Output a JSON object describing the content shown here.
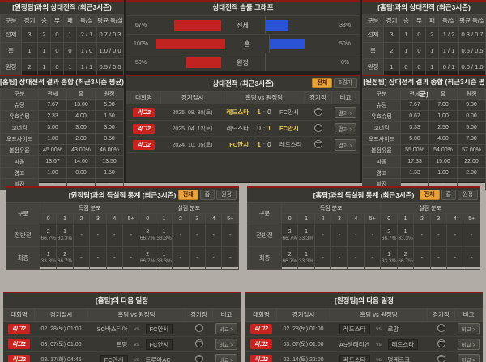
{
  "panels": {
    "h2h_vs_away": {
      "title": "[원정팀]과의 상대전적 (최근3시즌)",
      "headers": [
        "구분",
        "경기",
        "승",
        "무",
        "패",
        "득/실",
        "평균 득/실"
      ],
      "rows": [
        [
          "전체",
          "3",
          "2",
          "0",
          "1",
          "2 / 1",
          "0.7 / 0.3"
        ],
        [
          "홈",
          "1",
          "1",
          "0",
          "0",
          "1 / 0",
          "1.0 / 0.0"
        ],
        [
          "원정",
          "2",
          "1",
          "0",
          "1",
          "1 / 1",
          "0.5 / 0.5"
        ]
      ]
    },
    "winrate": {
      "title": "상대전적 승률 그래프",
      "left_color": "#c02320",
      "right_color": "#2b53d6",
      "rows": [
        {
          "label": "전체",
          "left_pct": 67,
          "left_text": "67%",
          "right_pct": 33,
          "right_text": "33%"
        },
        {
          "label": "홈",
          "left_pct": 100,
          "left_text": "100%",
          "right_pct": 50,
          "right_text": "50%"
        },
        {
          "label": "원정",
          "left_pct": 50,
          "left_text": "50%",
          "right_pct": 0,
          "right_text": "0%"
        }
      ]
    },
    "h2h_vs_home": {
      "title": "[홈팀]과의 상대전적 (최근3시즌)",
      "headers": [
        "구분",
        "경기",
        "승",
        "무",
        "패",
        "득/실",
        "평균 득/실"
      ],
      "rows": [
        [
          "전체",
          "3",
          "1",
          "0",
          "2",
          "1 / 2",
          "0.3 / 0.7"
        ],
        [
          "홈",
          "2",
          "1",
          "0",
          "1",
          "1 / 1",
          "0.5 / 0.5"
        ],
        [
          "원정",
          "1",
          "0",
          "0",
          "1",
          "0 / 1",
          "0.0 / 1.0"
        ]
      ]
    },
    "home_totals": {
      "title": "[홈팀] 상대전적 결과 종합 (최근3시즌 평균)",
      "headers": [
        "구분",
        "전체",
        "홈",
        "원정"
      ],
      "rows": [
        [
          "슈팅",
          "7.67",
          "13.00",
          "5.00"
        ],
        [
          "유효슈팅",
          "2.33",
          "4.00",
          "1.50"
        ],
        [
          "코너킥",
          "3.00",
          "3.00",
          "3.00"
        ],
        [
          "오프사이드",
          "1.00",
          "2.00",
          "0.50"
        ],
        [
          "볼점유율",
          "45.00%",
          "43.00%",
          "46.00%"
        ],
        [
          "파울",
          "13.67",
          "14.00",
          "13.50"
        ],
        [
          "경고",
          "1.00",
          "0.00",
          "1.50"
        ],
        [
          "퇴장",
          "-",
          "-",
          "-"
        ]
      ]
    },
    "away_totals": {
      "title": "[원정팀] 상대전적 결과 종합 (최근3시즌 평균)",
      "headers": [
        "구분",
        "전체",
        "홈",
        "원정"
      ],
      "rows": [
        [
          "슈팅",
          "7.67",
          "7.00",
          "9.00"
        ],
        [
          "유효슈팅",
          "0.67",
          "1.00",
          "0.00"
        ],
        [
          "코너킥",
          "3.33",
          "2.50",
          "5.00"
        ],
        [
          "오프사이드",
          "5.00",
          "4.00",
          "7.00"
        ],
        [
          "볼점유율",
          "55.00%",
          "54.00%",
          "57.00%"
        ],
        [
          "파울",
          "17.33",
          "15.00",
          "22.00"
        ],
        [
          "경고",
          "1.33",
          "1.00",
          "2.00"
        ],
        [
          "퇴장",
          "-",
          "-",
          "-"
        ]
      ]
    },
    "h2h_matches": {
      "title": "상대전적 (최근3시즌)",
      "filter_buttons": [
        {
          "label": "전체",
          "active": true
        },
        {
          "label": "5경기",
          "active": false
        }
      ],
      "headers": [
        "대회명",
        "경기일시",
        "홈팀 vs 원정팀",
        "경기장",
        "비고"
      ],
      "score_separator": "-",
      "rows": [
        {
          "league": "리그2",
          "date": "2025. 08. 30(토)",
          "home": "레드스타",
          "away": "FC안시",
          "home_score": "1",
          "away_score": "0",
          "winner": "home",
          "action": "결과 >"
        },
        {
          "league": "리그2",
          "date": "2025. 04. 12(토)",
          "home": "레드스타",
          "away": "FC안시",
          "home_score": "0",
          "away_score": "1",
          "winner": "away",
          "action": "결과 >"
        },
        {
          "league": "리그2",
          "date": "2024. 10. 05(토)",
          "home": "FC안시",
          "away": "레드스타",
          "home_score": "1",
          "away_score": "0",
          "winner": "home",
          "action": "결과 >"
        }
      ]
    },
    "goals_vs_away": {
      "title": "[원정팀]과의 득실점 통계 (최근3시즌)",
      "filter_buttons": [
        {
          "label": "전체",
          "active": true
        },
        {
          "label": "홈",
          "active": false
        },
        {
          "label": "원정",
          "active": false
        }
      ],
      "corner_label": "구분",
      "groups": [
        "득점 분포",
        "실점 분포"
      ],
      "bins": [
        "0",
        "1",
        "2",
        "3",
        "4",
        "5+"
      ],
      "rows": [
        {
          "label": "전반전",
          "scored": [
            [
              "2",
              "66.7%"
            ],
            [
              "1",
              "33.3%"
            ],
            "-",
            "-",
            "-",
            "-"
          ],
          "conceded": [
            [
              "2",
              "66.7%"
            ],
            [
              "1",
              "33.3%"
            ],
            "-",
            "-",
            "-",
            "-"
          ]
        },
        {
          "label": "최종",
          "scored": [
            [
              "1",
              "33.3%"
            ],
            [
              "2",
              "66.7%"
            ],
            "-",
            "-",
            "-",
            "-"
          ],
          "conceded": [
            [
              "2",
              "66.7%"
            ],
            [
              "1",
              "33.3%"
            ],
            "-",
            "-",
            "-",
            "-"
          ]
        }
      ]
    },
    "goals_vs_home": {
      "title": "[홈팀]과의 득실점 통계 (최근3시즌)",
      "filter_buttons": [
        {
          "label": "전체",
          "active": true
        },
        {
          "label": "홈",
          "active": false
        },
        {
          "label": "원정",
          "active": false
        }
      ],
      "corner_label": "구분",
      "groups": [
        "득점 분포",
        "실점 분포"
      ],
      "bins": [
        "0",
        "1",
        "2",
        "3",
        "4",
        "5+"
      ],
      "rows": [
        {
          "label": "전반전",
          "scored": [
            [
              "2",
              "66.7%"
            ],
            [
              "1",
              "33.3%"
            ],
            "-",
            "-",
            "-",
            "-"
          ],
          "conceded": [
            [
              "2",
              "66.7%"
            ],
            [
              "1",
              "33.3%"
            ],
            "-",
            "-",
            "-",
            "-"
          ]
        },
        {
          "label": "최종",
          "scored": [
            [
              "2",
              "66.7%"
            ],
            [
              "1",
              "33.3%"
            ],
            "-",
            "-",
            "-",
            "-"
          ],
          "conceded": [
            [
              "1",
              "33.3%"
            ],
            [
              "2",
              "66.7%"
            ],
            "-",
            "-",
            "-",
            "-"
          ]
        }
      ]
    },
    "schedule_home": {
      "title": "[홈팀]의 다음 일정",
      "headers": [
        "대회명",
        "경기일시",
        "홈팀 vs 원정팀",
        "경기장",
        "비고"
      ],
      "vs_label": "vs",
      "rows": [
        {
          "league": "리그2",
          "date": "02. 28(토) 01:00",
          "home": "SC바스티아",
          "away": "FC안시",
          "highlight": "away",
          "action": "비교 >"
        },
        {
          "league": "리그2",
          "date": "03. 07(토) 01:00",
          "home": "르망",
          "away": "FC안시",
          "highlight": "away",
          "action": "비교 >"
        },
        {
          "league": "리그2",
          "date": "03. 17(화) 04:45",
          "home": "FC안시",
          "away": "트루아AC",
          "highlight": "home",
          "action": "비교 >"
        }
      ]
    },
    "schedule_away": {
      "title": "[원정팀]의 다음 일정",
      "headers": [
        "대회명",
        "경기일시",
        "홈팀 vs 원정팀",
        "경기장",
        "비고"
      ],
      "vs_label": "vs",
      "rows": [
        {
          "league": "리그2",
          "date": "02. 28(토) 01:00",
          "home": "레드스타",
          "away": "르망",
          "highlight": "home",
          "action": "비교 >"
        },
        {
          "league": "리그2",
          "date": "03. 07(토) 01:00",
          "home": "AS생테티엔",
          "away": "레드스타",
          "highlight": "away",
          "action": "비교 >"
        },
        {
          "league": "리그2",
          "date": "03. 14(토) 22:00",
          "home": "레드스타",
          "away": "덩케르크",
          "highlight": "home",
          "action": "비교 >"
        }
      ]
    }
  },
  "colors": {
    "accent_red": "#8d1a12",
    "badge_red": "#c8231f",
    "winner_gold": "#e9c94d",
    "active_filter_orange": "#e8a33b",
    "bar_red": "#c02320",
    "bar_blue": "#2b53d6",
    "panel_bg": "#393732"
  }
}
